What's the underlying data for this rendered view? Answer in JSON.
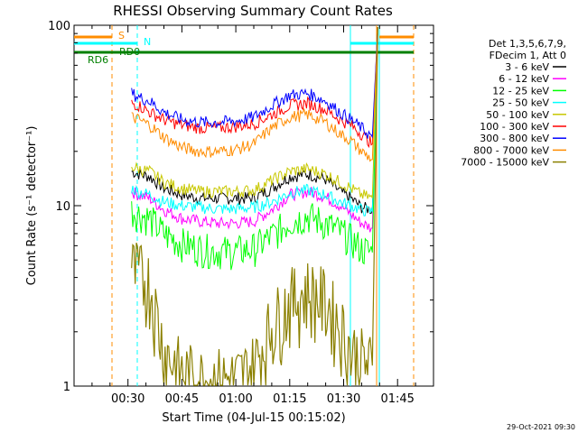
{
  "chart_data": {
    "type": "line",
    "title": "RHESSI Observing Summary Count Rates",
    "xlabel": "Start Time (04-Jul-15 00:15:02)",
    "ylabel": "Count Rate (s⁻¹ detector⁻¹)",
    "y_scale": "log",
    "ylim": [
      1,
      100
    ],
    "xlim": [
      "00:15",
      "01:55"
    ],
    "x_tick_labels": [
      "00:30",
      "00:45",
      "01:00",
      "01:15",
      "01:30",
      "01:45"
    ],
    "y_tick_labels": [
      "1",
      "10",
      "100"
    ],
    "timestamp": "29-Oct-2021 09:30",
    "legend": {
      "position": "top-right",
      "header": [
        "Det 1,3,5,6,7,9,",
        "FDecim 1, Att 0"
      ]
    },
    "x": [
      "00:29",
      "00:31",
      "00:33",
      "00:36",
      "00:40",
      "00:45",
      "00:50",
      "00:55",
      "01:00",
      "01:05",
      "01:10",
      "01:15",
      "01:20",
      "01:25",
      "01:29",
      "01:32",
      "01:35",
      "01:38"
    ],
    "series": [
      {
        "name": "3 - 6 keV",
        "color": "#000000",
        "values": [
          null,
          15.5,
          15,
          14.5,
          12.5,
          11.5,
          11,
          11,
          11,
          11,
          12.5,
          14.5,
          15,
          14,
          12,
          11,
          9.8,
          9.5
        ]
      },
      {
        "name": "6 - 12 keV",
        "color": "#ff00ff",
        "values": [
          null,
          12,
          11.5,
          11,
          9.5,
          8.5,
          8.2,
          8,
          8,
          8.2,
          9.5,
          11.5,
          12,
          11.2,
          10,
          9,
          8,
          7.5
        ]
      },
      {
        "name": "12 - 25 keV",
        "color": "#00ff00",
        "values": [
          null,
          9.5,
          9,
          8.5,
          7,
          6.2,
          5.8,
          5.6,
          5.6,
          5.8,
          6.8,
          8.2,
          8.8,
          8,
          7.2,
          6.5,
          5.8,
          5.5
        ]
      },
      {
        "name": "25 - 50 keV",
        "color": "#00ffff",
        "values": [
          null,
          12.5,
          12,
          11.5,
          10.5,
          10,
          9.8,
          9.6,
          9.6,
          9.8,
          10.5,
          11.8,
          12.2,
          11.5,
          10.5,
          10,
          9.5,
          9.2
        ]
      },
      {
        "name": "50 - 100 keV",
        "color": "#c8c800",
        "values": [
          null,
          16.5,
          16,
          15.5,
          13.5,
          12.5,
          12,
          12,
          12,
          12.2,
          13.8,
          15.5,
          16,
          15,
          13.5,
          12.5,
          11.5,
          11
        ]
      },
      {
        "name": "100 - 300 keV",
        "color": "#ff0000",
        "values": [
          null,
          37,
          36,
          33,
          30,
          28,
          27,
          27,
          27.5,
          28.5,
          32,
          36,
          37,
          34,
          30,
          28,
          25,
          22
        ]
      },
      {
        "name": "300 - 800 keV",
        "color": "#0000ff",
        "values": [
          null,
          42,
          40,
          38,
          33,
          30,
          29,
          29,
          29.5,
          31,
          36,
          41,
          42,
          38,
          33,
          30,
          27,
          24
        ]
      },
      {
        "name": "800 - 7000 keV",
        "color": "#ff8c00",
        "values": [
          null,
          31,
          30,
          28,
          24,
          21,
          20,
          20,
          20.5,
          22,
          27,
          31,
          32,
          29,
          25,
          23,
          20,
          18
        ]
      },
      {
        "name": "7000 - 15000 keV",
        "color": "#8b8000",
        "values": [
          null,
          4.5,
          4.2,
          3.8,
          1.6,
          1.2,
          1.1,
          1.1,
          1.1,
          1.3,
          2.2,
          3,
          3.4,
          3,
          2.2,
          1.6,
          1.4,
          1.3
        ]
      }
    ],
    "annotations": [
      {
        "label": "S",
        "color": "#ff8c00",
        "kind": "spacecraft-night/saa flag"
      },
      {
        "label": "N",
        "color": "#00ffff",
        "kind": "night flag"
      },
      {
        "label": "RD0",
        "color": "#008000",
        "kind": "flag bar"
      },
      {
        "label": "RD6",
        "color": "#008000",
        "kind": "flag bar"
      }
    ]
  }
}
